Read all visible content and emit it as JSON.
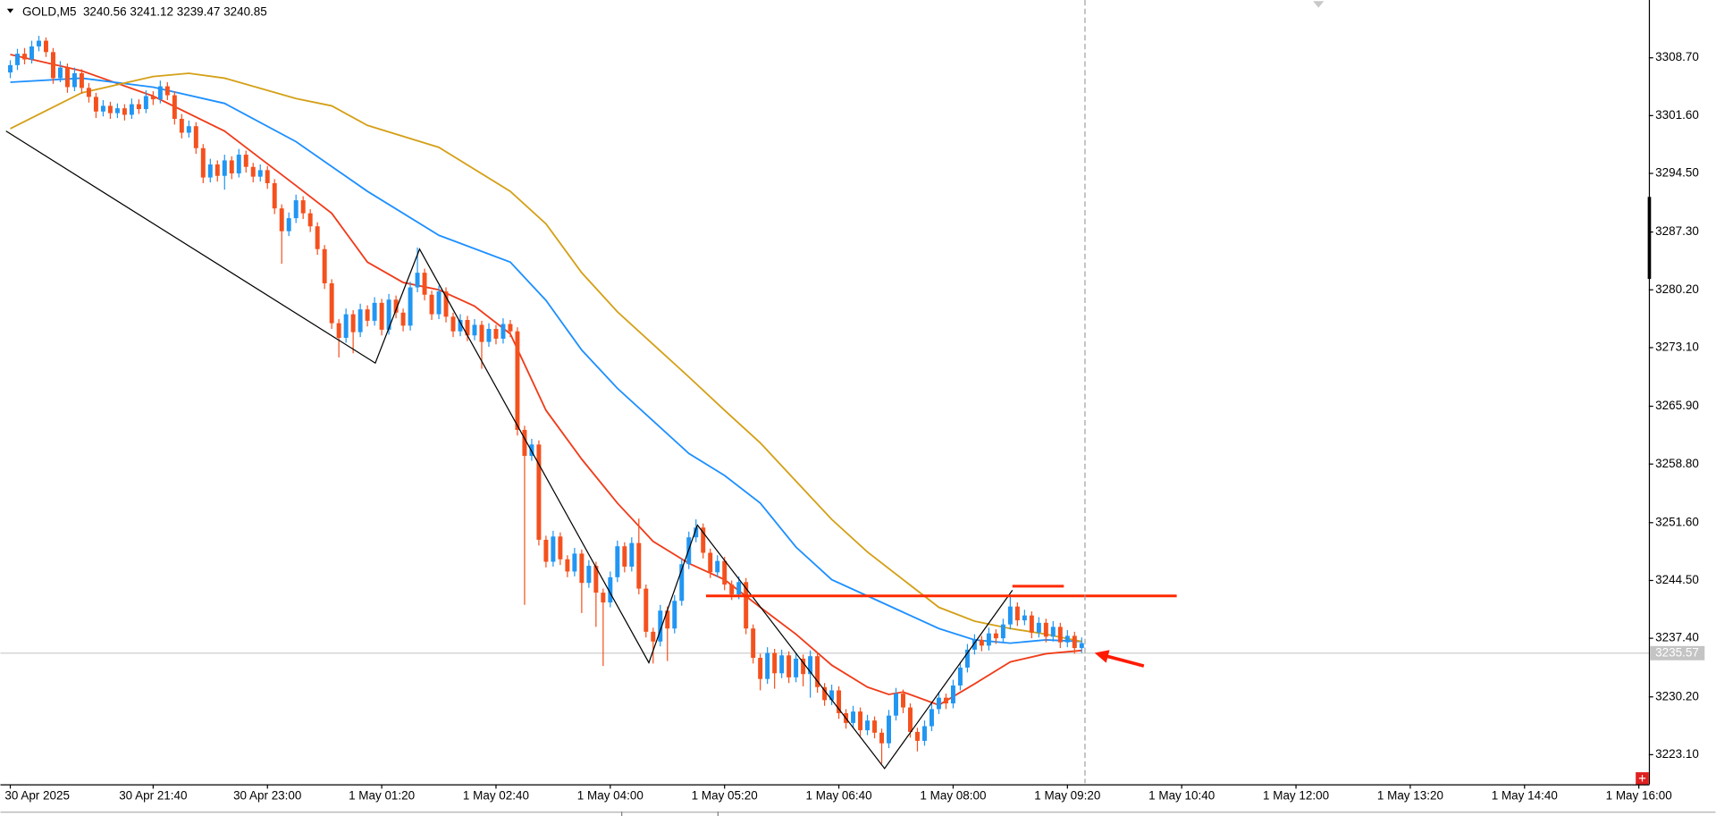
{
  "chart_data": {
    "type": "candlestick",
    "symbol": "GOLD,M5",
    "header_ohlc": [
      3240.56,
      3241.12,
      3239.47,
      3240.85
    ],
    "up_color": "#2196f3",
    "down_color": "#f4511e",
    "xlim": [
      -1.38,
      229.4
    ],
    "xticks": [
      {
        "value": 0,
        "label": "30 Apr 2025"
      },
      {
        "value": 20,
        "label": "30 Apr 21:40"
      },
      {
        "value": 36,
        "label": "30 Apr 23:00"
      },
      {
        "value": 52,
        "label": "1 May 01:20"
      },
      {
        "value": 68,
        "label": "1 May 02:40"
      },
      {
        "value": 84,
        "label": "1 May 04:00"
      },
      {
        "value": 100,
        "label": "1 May 05:20"
      },
      {
        "value": 116,
        "label": "1 May 06:40"
      },
      {
        "value": 132,
        "label": "1 May 08:00"
      },
      {
        "value": 148,
        "label": "1 May 09:20"
      },
      {
        "value": 164,
        "label": "1 May 10:40"
      },
      {
        "value": 180,
        "label": "1 May 12:00"
      },
      {
        "value": 196,
        "label": "1 May 13:20"
      },
      {
        "value": 212,
        "label": "1 May 14:40"
      },
      {
        "value": 228,
        "label": "1 May 16:00"
      }
    ],
    "ylim": [
      3219.6,
      3315.8
    ],
    "yticks": [
      {
        "value": 3308.7,
        "label": "3308.70"
      },
      {
        "value": 3301.6,
        "label": "3301.60"
      },
      {
        "value": 3294.5,
        "label": "3294.50"
      },
      {
        "value": 3287.3,
        "label": "3287.30"
      },
      {
        "value": 3280.2,
        "label": "3280.20"
      },
      {
        "value": 3273.1,
        "label": "3273.10"
      },
      {
        "value": 3265.9,
        "label": "3265.90"
      },
      {
        "value": 3258.8,
        "label": "3258.80"
      },
      {
        "value": 3251.6,
        "label": "3251.60"
      },
      {
        "value": 3244.5,
        "label": "3244.50"
      },
      {
        "value": 3237.4,
        "label": "3237.40"
      },
      {
        "value": 3230.2,
        "label": "3230.20"
      },
      {
        "value": 3223.1,
        "label": "3223.10"
      }
    ],
    "current_price": 3235.57,
    "candles": [
      [
        3306.9,
        3308.4,
        3306.2,
        3307.8
      ],
      [
        3307.8,
        3309.8,
        3307.2,
        3309.2
      ],
      [
        3309.2,
        3309.9,
        3307.9,
        3308.5
      ],
      [
        3308.5,
        3310.8,
        3308.0,
        3310.1
      ],
      [
        3310.1,
        3311.4,
        3309.5,
        3310.8
      ],
      [
        3310.8,
        3311.2,
        3308.8,
        3309.4
      ],
      [
        3309.4,
        3309.9,
        3305.5,
        3306.2
      ],
      [
        3306.2,
        3308.3,
        3305.7,
        3307.5
      ],
      [
        3307.5,
        3308.0,
        3304.4,
        3305.1
      ],
      [
        3305.1,
        3307.5,
        3304.6,
        3306.8
      ],
      [
        3306.8,
        3307.3,
        3304.3,
        3305.0
      ],
      [
        3305.0,
        3305.6,
        3303.2,
        3303.9
      ],
      [
        3303.9,
        3304.4,
        3301.3,
        3302.1
      ],
      [
        3302.1,
        3303.5,
        3301.5,
        3302.8
      ],
      [
        3302.8,
        3303.3,
        3301.2,
        3301.9
      ],
      [
        3301.9,
        3303.1,
        3301.3,
        3302.5
      ],
      [
        3302.5,
        3303.0,
        3301.0,
        3301.7
      ],
      [
        3301.7,
        3303.7,
        3301.2,
        3303.0
      ],
      [
        3303.0,
        3303.6,
        3301.8,
        3302.4
      ],
      [
        3302.4,
        3304.7,
        3301.9,
        3304.0
      ],
      [
        3304.0,
        3304.6,
        3302.9,
        3303.6
      ],
      [
        3303.6,
        3305.9,
        3303.1,
        3305.2
      ],
      [
        3305.2,
        3305.7,
        3303.5,
        3304.1
      ],
      [
        3304.1,
        3304.6,
        3300.5,
        3301.2
      ],
      [
        3301.2,
        3301.8,
        3298.8,
        3299.5
      ],
      [
        3299.5,
        3301.0,
        3298.9,
        3300.3
      ],
      [
        3300.3,
        3300.8,
        3296.9,
        3297.6
      ],
      [
        3297.6,
        3298.1,
        3293.3,
        3294.0
      ],
      [
        3294.0,
        3296.3,
        3293.4,
        3295.6
      ],
      [
        3295.6,
        3296.1,
        3293.5,
        3294.2
      ],
      [
        3294.2,
        3296.8,
        3292.5,
        3296.1
      ],
      [
        3296.1,
        3296.6,
        3293.8,
        3294.5
      ],
      [
        3294.5,
        3297.5,
        3294.0,
        3296.8
      ],
      [
        3296.8,
        3297.3,
        3294.6,
        3295.3
      ],
      [
        3295.3,
        3295.8,
        3293.4,
        3294.1
      ],
      [
        3294.1,
        3295.6,
        3293.5,
        3294.9
      ],
      [
        3294.9,
        3295.4,
        3292.6,
        3293.3
      ],
      [
        3293.3,
        3293.8,
        3289.5,
        3290.2
      ],
      [
        3290.2,
        3290.7,
        3283.4,
        3287.4
      ],
      [
        3287.4,
        3289.7,
        3286.8,
        3289.0
      ],
      [
        3289.0,
        3291.9,
        3288.4,
        3291.2
      ],
      [
        3291.2,
        3291.7,
        3288.9,
        3289.6
      ],
      [
        3289.6,
        3290.1,
        3287.3,
        3288.0
      ],
      [
        3288.0,
        3288.5,
        3284.5,
        3285.2
      ],
      [
        3285.2,
        3285.7,
        3280.3,
        3281.0
      ],
      [
        3281.0,
        3281.5,
        3275.4,
        3276.1
      ],
      [
        3276.1,
        3276.6,
        3271.9,
        3274.3
      ],
      [
        3274.3,
        3277.9,
        3273.7,
        3277.2
      ],
      [
        3277.2,
        3277.7,
        3272.4,
        3275.0
      ],
      [
        3275.0,
        3278.5,
        3274.4,
        3277.8
      ],
      [
        3277.8,
        3278.3,
        3275.7,
        3276.4
      ],
      [
        3276.4,
        3279.3,
        3275.8,
        3278.6
      ],
      [
        3278.6,
        3279.1,
        3274.6,
        3275.3
      ],
      [
        3275.3,
        3279.7,
        3274.7,
        3279.0
      ],
      [
        3279.0,
        3279.5,
        3276.7,
        3277.4
      ],
      [
        3277.4,
        3277.9,
        3275.1,
        3275.8
      ],
      [
        3275.8,
        3281.2,
        3275.2,
        3280.5
      ],
      [
        3280.5,
        3285.4,
        3279.9,
        3282.3
      ],
      [
        3282.3,
        3282.8,
        3278.9,
        3279.6
      ],
      [
        3279.6,
        3280.1,
        3276.5,
        3277.2
      ],
      [
        3277.2,
        3280.7,
        3276.6,
        3280.0
      ],
      [
        3280.0,
        3280.5,
        3276.2,
        3276.9
      ],
      [
        3276.9,
        3277.4,
        3274.4,
        3275.1
      ],
      [
        3275.1,
        3277.2,
        3274.5,
        3276.5
      ],
      [
        3276.5,
        3277.0,
        3273.9,
        3274.6
      ],
      [
        3274.6,
        3276.6,
        3274.0,
        3275.9
      ],
      [
        3275.9,
        3276.4,
        3270.5,
        3273.8
      ],
      [
        3273.8,
        3276.1,
        3273.2,
        3275.4
      ],
      [
        3275.4,
        3275.9,
        3273.5,
        3274.2
      ],
      [
        3274.2,
        3276.7,
        3273.6,
        3276.0
      ],
      [
        3276.0,
        3276.5,
        3274.4,
        3275.1
      ],
      [
        3275.1,
        3275.6,
        3262.3,
        3263.0
      ],
      [
        3263.0,
        3263.5,
        3241.5,
        3259.8
      ],
      [
        3259.8,
        3261.9,
        3259.2,
        3261.2
      ],
      [
        3261.2,
        3261.7,
        3248.8,
        3249.5
      ],
      [
        3249.5,
        3250.0,
        3246.1,
        3246.8
      ],
      [
        3246.8,
        3250.6,
        3246.2,
        3249.9
      ],
      [
        3249.9,
        3250.4,
        3246.4,
        3247.1
      ],
      [
        3247.1,
        3247.6,
        3244.9,
        3245.6
      ],
      [
        3245.6,
        3248.5,
        3245.0,
        3247.8
      ],
      [
        3247.8,
        3248.3,
        3240.5,
        3244.2
      ],
      [
        3244.2,
        3247.0,
        3243.6,
        3246.3
      ],
      [
        3246.3,
        3246.8,
        3238.8,
        3243.0
      ],
      [
        3243.0,
        3243.5,
        3234.0,
        3241.8
      ],
      [
        3241.8,
        3245.6,
        3241.2,
        3244.9
      ],
      [
        3244.9,
        3249.4,
        3244.3,
        3248.7
      ],
      [
        3248.7,
        3249.2,
        3245.5,
        3246.2
      ],
      [
        3246.2,
        3249.8,
        3245.6,
        3249.1
      ],
      [
        3249.1,
        3252.1,
        3242.8,
        3243.5
      ],
      [
        3243.5,
        3244.0,
        3237.5,
        3238.2
      ],
      [
        3238.2,
        3238.7,
        3234.3,
        3237.0
      ],
      [
        3237.0,
        3241.5,
        3236.4,
        3240.8
      ],
      [
        3240.8,
        3241.3,
        3234.6,
        3238.6
      ],
      [
        3238.6,
        3242.7,
        3238.0,
        3242.0
      ],
      [
        3242.0,
        3247.2,
        3241.4,
        3246.5
      ],
      [
        3246.5,
        3250.5,
        3245.9,
        3249.8
      ],
      [
        3249.8,
        3252.0,
        3249.2,
        3251.0
      ],
      [
        3251.0,
        3251.5,
        3247.2,
        3247.9
      ],
      [
        3247.9,
        3248.4,
        3244.8,
        3245.5
      ],
      [
        3245.5,
        3247.6,
        3244.9,
        3246.9
      ],
      [
        3246.9,
        3247.4,
        3243.3,
        3244.0
      ],
      [
        3244.0,
        3244.5,
        3242.1,
        3242.8
      ],
      [
        3242.8,
        3245.0,
        3242.2,
        3244.3
      ],
      [
        3244.3,
        3244.8,
        3237.9,
        3238.6
      ],
      [
        3238.6,
        3239.1,
        3234.3,
        3235.0
      ],
      [
        3235.0,
        3235.5,
        3231.0,
        3232.4
      ],
      [
        3232.4,
        3236.3,
        3231.8,
        3235.6
      ],
      [
        3235.6,
        3236.1,
        3231.2,
        3233.1
      ],
      [
        3233.1,
        3236.0,
        3232.5,
        3235.3
      ],
      [
        3235.3,
        3235.8,
        3231.9,
        3232.6
      ],
      [
        3232.6,
        3235.6,
        3232.0,
        3234.9
      ],
      [
        3234.9,
        3235.4,
        3231.5,
        3233.0
      ],
      [
        3233.0,
        3235.9,
        3230.1,
        3235.2
      ],
      [
        3235.2,
        3235.7,
        3230.7,
        3231.4
      ],
      [
        3231.4,
        3231.9,
        3229.1,
        3229.8
      ],
      [
        3229.8,
        3231.7,
        3229.2,
        3231.0
      ],
      [
        3231.0,
        3231.5,
        3227.5,
        3228.2
      ],
      [
        3228.2,
        3228.7,
        3226.3,
        3227.0
      ],
      [
        3227.0,
        3229.1,
        3226.4,
        3228.4
      ],
      [
        3228.4,
        3228.9,
        3225.4,
        3226.1
      ],
      [
        3226.1,
        3228.0,
        3225.5,
        3227.3
      ],
      [
        3227.3,
        3227.8,
        3225.1,
        3225.8
      ],
      [
        3225.8,
        3226.3,
        3222.0,
        3224.5
      ],
      [
        3224.5,
        3228.6,
        3223.9,
        3227.9
      ],
      [
        3227.9,
        3231.3,
        3227.3,
        3230.6
      ],
      [
        3230.6,
        3231.1,
        3228.2,
        3228.9
      ],
      [
        3228.9,
        3229.4,
        3225.2,
        3225.9
      ],
      [
        3225.9,
        3226.4,
        3223.5,
        3224.8
      ],
      [
        3224.8,
        3227.3,
        3224.2,
        3226.6
      ],
      [
        3226.6,
        3229.4,
        3226.0,
        3228.7
      ],
      [
        3228.7,
        3230.8,
        3228.1,
        3230.1
      ],
      [
        3230.1,
        3230.6,
        3228.7,
        3229.4
      ],
      [
        3229.4,
        3232.3,
        3228.8,
        3231.6
      ],
      [
        3231.6,
        3234.5,
        3231.0,
        3233.8
      ],
      [
        3233.8,
        3236.7,
        3233.2,
        3236.0
      ],
      [
        3236.0,
        3237.9,
        3235.4,
        3237.2
      ],
      [
        3237.2,
        3237.7,
        3235.8,
        3236.5
      ],
      [
        3236.5,
        3238.7,
        3235.9,
        3238.0
      ],
      [
        3238.0,
        3238.5,
        3236.7,
        3237.4
      ],
      [
        3237.4,
        3239.8,
        3236.8,
        3239.1
      ],
      [
        3239.1,
        3242.6,
        3238.5,
        3241.3
      ],
      [
        3241.3,
        3241.8,
        3238.9,
        3239.6
      ],
      [
        3239.6,
        3240.9,
        3239.0,
        3240.2
      ],
      [
        3240.2,
        3240.7,
        3237.4,
        3238.1
      ],
      [
        3238.1,
        3240.0,
        3237.5,
        3239.3
      ],
      [
        3239.3,
        3239.8,
        3236.9,
        3237.6
      ],
      [
        3237.6,
        3239.5,
        3237.0,
        3238.8
      ],
      [
        3238.8,
        3239.3,
        3236.2,
        3236.9
      ],
      [
        3236.9,
        3238.4,
        3236.3,
        3237.7
      ],
      [
        3237.7,
        3238.2,
        3235.5,
        3236.2
      ],
      [
        3236.2,
        3237.5,
        3235.6,
        3236.8
      ]
    ],
    "series": [
      {
        "color": "#f03c1a",
        "x": [
          0,
          10,
          20,
          30,
          40,
          45,
          50,
          55,
          60,
          65,
          70,
          75,
          80,
          85,
          90,
          95,
          100,
          105,
          110,
          115,
          120,
          123,
          125,
          130,
          135,
          140,
          145,
          150
        ],
        "values": [
          3309.1,
          3307.1,
          3304.0,
          3299.7,
          3293.0,
          3289.6,
          3283.6,
          3281.1,
          3280.2,
          3278.2,
          3274.8,
          3265.4,
          3259.4,
          3254.0,
          3249.3,
          3246.6,
          3244.6,
          3241.2,
          3237.9,
          3234.1,
          3231.4,
          3230.5,
          3230.8,
          3229.2,
          3231.8,
          3234.5,
          3235.5,
          3235.9
        ]
      },
      {
        "color": "#1e90ff",
        "x": [
          0,
          10,
          20,
          30,
          40,
          50,
          60,
          70,
          75,
          80,
          85,
          90,
          95,
          100,
          105,
          110,
          115,
          120,
          125,
          130,
          135,
          140,
          145,
          150
        ],
        "values": [
          3305.7,
          3306.2,
          3305.1,
          3303.1,
          3298.4,
          3292.3,
          3286.9,
          3283.6,
          3278.9,
          3272.8,
          3268.1,
          3264.1,
          3260.1,
          3257.4,
          3254.0,
          3248.6,
          3244.6,
          3242.6,
          3240.6,
          3238.6,
          3237.2,
          3236.8,
          3237.2,
          3237.0
        ]
      },
      {
        "color": "#d4a017",
        "x": [
          0,
          10,
          20,
          25,
          30,
          40,
          45,
          50,
          60,
          70,
          75,
          80,
          85,
          90,
          95,
          100,
          105,
          110,
          115,
          120,
          125,
          130,
          135,
          140,
          145,
          150
        ],
        "values": [
          3300.0,
          3304.4,
          3306.4,
          3306.8,
          3306.2,
          3303.7,
          3302.8,
          3300.4,
          3297.7,
          3292.3,
          3288.3,
          3282.3,
          3277.5,
          3273.5,
          3269.5,
          3265.4,
          3261.4,
          3256.7,
          3252.0,
          3248.0,
          3244.6,
          3241.2,
          3239.5,
          3238.6,
          3237.9,
          3237.0
        ]
      }
    ],
    "drawings": {
      "zigzag": {
        "color": "#000000",
        "points": [
          [
            -0.6,
            3299.7
          ],
          [
            51.1,
            3271.2
          ],
          [
            57.3,
            3285.2
          ],
          [
            89.4,
            3234.4
          ],
          [
            96.2,
            3251.3
          ],
          [
            122.4,
            3221.4
          ],
          [
            140.3,
            3243.3
          ]
        ]
      },
      "levels": [
        {
          "color": "#ff2a00",
          "from": 97.4,
          "to": 163.3,
          "price": 3242.6
        },
        {
          "color": "#ff2a00",
          "from": 140.3,
          "to": 147.5,
          "price": 3243.8
        }
      ],
      "arrow": {
        "color": "#ff1a00",
        "from": [
          158.7,
          3234.0
        ],
        "to": [
          151.8,
          3235.6
        ]
      }
    }
  }
}
